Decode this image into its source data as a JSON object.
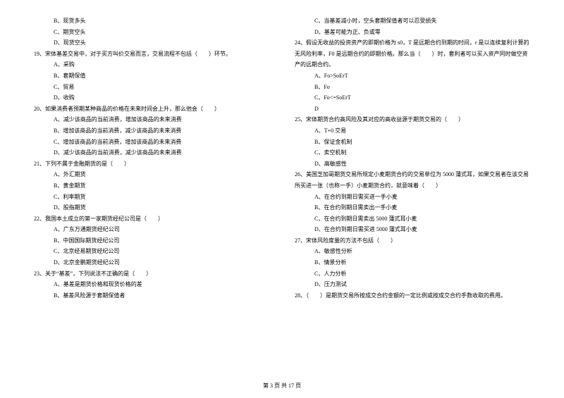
{
  "left": {
    "lines": [
      {
        "cls": "option",
        "t": "B、现货多头"
      },
      {
        "cls": "option",
        "t": "C、期货空头"
      },
      {
        "cls": "option",
        "t": "D、现货空头"
      },
      {
        "cls": "question",
        "t": "19、宋体基差交易中，对于买方叫价交易而言，交易流程不包括（　　）环节。"
      },
      {
        "cls": "option",
        "t": "A、采购"
      },
      {
        "cls": "option",
        "t": "B、套期保值"
      },
      {
        "cls": "option",
        "t": "C、贸易"
      },
      {
        "cls": "option",
        "t": "D、收购"
      },
      {
        "cls": "question",
        "t": "20、如果消费者预期某种商品的价格在未来时间会上升，那么他会（　　）"
      },
      {
        "cls": "option",
        "t": "A、减少该商品的当前消费，增加该商品的未来消费"
      },
      {
        "cls": "option",
        "t": "B、增加该商品的当前消费，减少该商品的未来消费"
      },
      {
        "cls": "option",
        "t": "C、增加该商品的当前消费，增加该商品的未来消费"
      },
      {
        "cls": "option",
        "t": "D、减少该商品的当前消费，减少该商品的未来消费"
      },
      {
        "cls": "question",
        "t": "21、下列不属于金融期货的是（　　）"
      },
      {
        "cls": "option",
        "t": "A、外汇期货"
      },
      {
        "cls": "option",
        "t": "B、黄金期货"
      },
      {
        "cls": "option",
        "t": "C、利率期货"
      },
      {
        "cls": "option",
        "t": "D、股指期货"
      },
      {
        "cls": "question",
        "t": "22、我国本土成立的第一家期货经纪公司是（　　）"
      },
      {
        "cls": "option",
        "t": "A、广东万通期货经纪公司"
      },
      {
        "cls": "option",
        "t": "B、中国国际期货经纪公司"
      },
      {
        "cls": "option",
        "t": "C、北京经易期货经纪公司"
      },
      {
        "cls": "option",
        "t": "D、北京金鹏期货经纪公司"
      },
      {
        "cls": "question",
        "t": "23、关于“基差”，下列说法不正确的是（　　）"
      },
      {
        "cls": "option",
        "t": "A、基差是期货价格和现货价格的差"
      },
      {
        "cls": "option",
        "t": "B、基差风险源于套期保值者"
      }
    ]
  },
  "right": {
    "lines": [
      {
        "cls": "option",
        "t": "C、当基差减小时，空头套期保值者可以忍受损失"
      },
      {
        "cls": "option",
        "t": "D、基差可能为正、负或零"
      },
      {
        "cls": "question",
        "t": "24、假设无收益的投资资产的即期价格为 s0，T 是远期合约到期的时间，r 是以连续复利计算的无风险利率，F0 是远期合约的即期价格。那么当（　　）时，套利者可以买入资产同时做空资产的远期合约。"
      },
      {
        "cls": "option",
        "t": "A、Fo>SoErT"
      },
      {
        "cls": "option",
        "t": "B、Fo"
      },
      {
        "cls": "option",
        "t": "C、Fo<=SoErT"
      },
      {
        "cls": "option",
        "t": "D"
      },
      {
        "cls": "question",
        "t": "25、宋体期货合约高风险及其对应的高收益源于期货交易的（　　）"
      },
      {
        "cls": "option",
        "t": "A、T+0 交易"
      },
      {
        "cls": "option",
        "t": "B、保证金机制"
      },
      {
        "cls": "option",
        "t": "C、卖空机制"
      },
      {
        "cls": "option",
        "t": "D、高敏感性"
      },
      {
        "cls": "question",
        "t": "26、美国芝加哥期货交易所规定小麦期货合约的交易单位为 5000 蒲式耳，如果交易者在该交易所买进一张（也称一手）小麦期货合约，就意味着（　　）"
      },
      {
        "cls": "option",
        "t": "A、在合约到期日需买进一手小麦"
      },
      {
        "cls": "option",
        "t": "B、在合约到期日需卖出一手小麦"
      },
      {
        "cls": "option",
        "t": "C、在合约到期日需卖出 5000 蒲式耳小麦"
      },
      {
        "cls": "option",
        "t": "D、在合约到期日需买进 5000 蒲式耳小麦"
      },
      {
        "cls": "question",
        "t": "27、宋体风险度量的方法不包括（　　）"
      },
      {
        "cls": "option",
        "t": "A、敏感性分析"
      },
      {
        "cls": "option",
        "t": "B、情景分析"
      },
      {
        "cls": "option",
        "t": "C、人力分析"
      },
      {
        "cls": "option",
        "t": "D、压力测试"
      },
      {
        "cls": "question",
        "t": "28、（　　）是期货交易所按成交合约金额的一定比例或按成交合约手数收取的费用。"
      }
    ]
  },
  "footer": "第 3 页 共 17 页"
}
